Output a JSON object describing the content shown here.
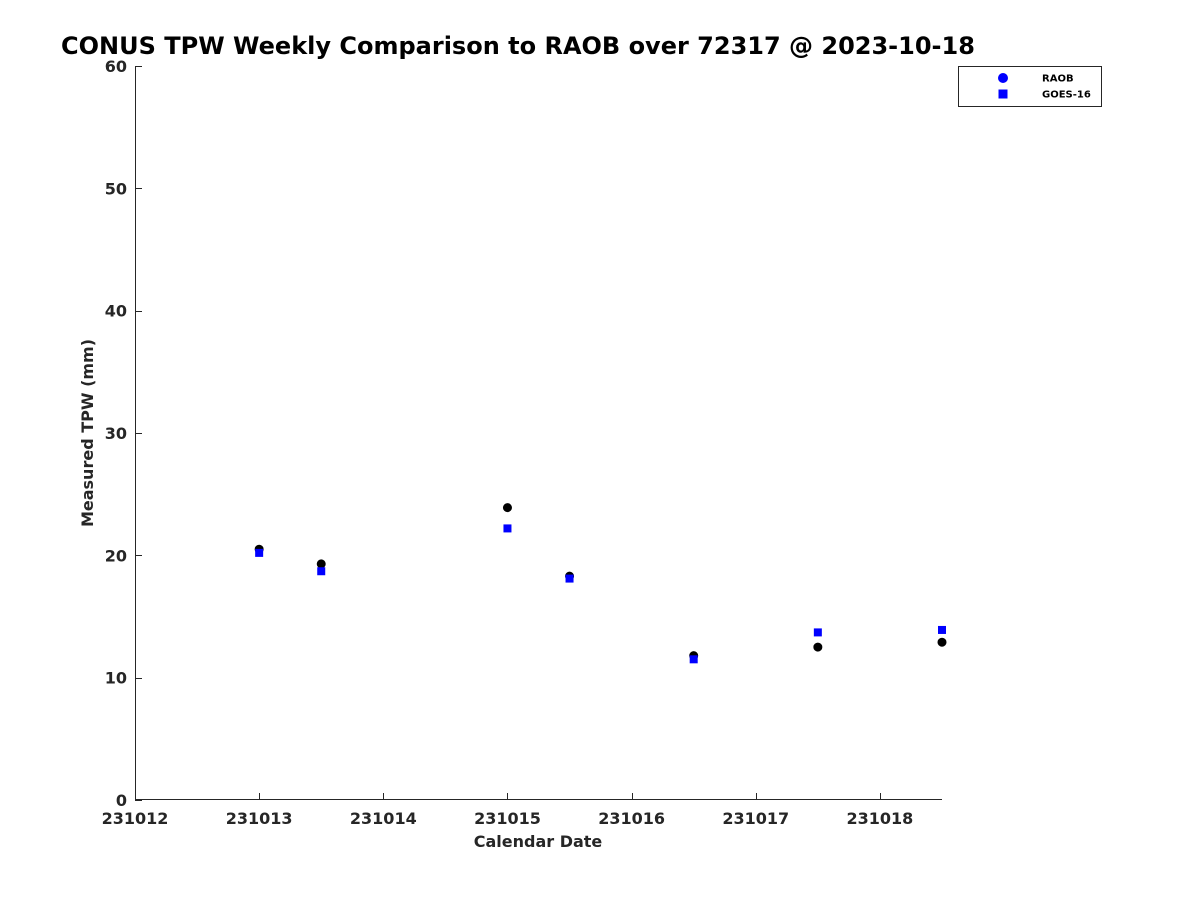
{
  "chart_data": {
    "type": "scatter",
    "title": "CONUS TPW Weekly Comparison to RAOB over 72317 @ 2023-10-18",
    "xlabel": "Calendar Date",
    "ylabel": "Measured TPW (mm)",
    "xlim": [
      231012,
      231018.5
    ],
    "ylim": [
      0,
      60
    ],
    "x_ticks": [
      231012,
      231013,
      231014,
      231015,
      231016,
      231017,
      231018
    ],
    "x_tick_labels": [
      "231012",
      "231013",
      "231014",
      "231015",
      "231016",
      "231017",
      "231018"
    ],
    "y_ticks": [
      0,
      10,
      20,
      30,
      40,
      50,
      60
    ],
    "y_tick_labels": [
      "0",
      "10",
      "20",
      "30",
      "40",
      "50",
      "60"
    ],
    "grid": false,
    "legend_position": "top-right",
    "series": [
      {
        "name": "RAOB",
        "marker": "circle",
        "color": "#000000",
        "legend_color": "#0000ff",
        "points": [
          {
            "x": 231013.0,
            "y": 20.5
          },
          {
            "x": 231013.5,
            "y": 19.3
          },
          {
            "x": 231015.0,
            "y": 23.9
          },
          {
            "x": 231015.5,
            "y": 18.3
          },
          {
            "x": 231016.5,
            "y": 11.8
          },
          {
            "x": 231017.5,
            "y": 12.5
          },
          {
            "x": 231018.5,
            "y": 12.9
          }
        ]
      },
      {
        "name": "GOES-16",
        "marker": "square",
        "color": "#0000ff",
        "legend_color": "#0000ff",
        "points": [
          {
            "x": 231013.0,
            "y": 20.2
          },
          {
            "x": 231013.5,
            "y": 18.7
          },
          {
            "x": 231015.0,
            "y": 22.2
          },
          {
            "x": 231015.5,
            "y": 18.1
          },
          {
            "x": 231016.5,
            "y": 11.5
          },
          {
            "x": 231017.5,
            "y": 13.7
          },
          {
            "x": 231018.5,
            "y": 13.9
          }
        ]
      }
    ]
  }
}
